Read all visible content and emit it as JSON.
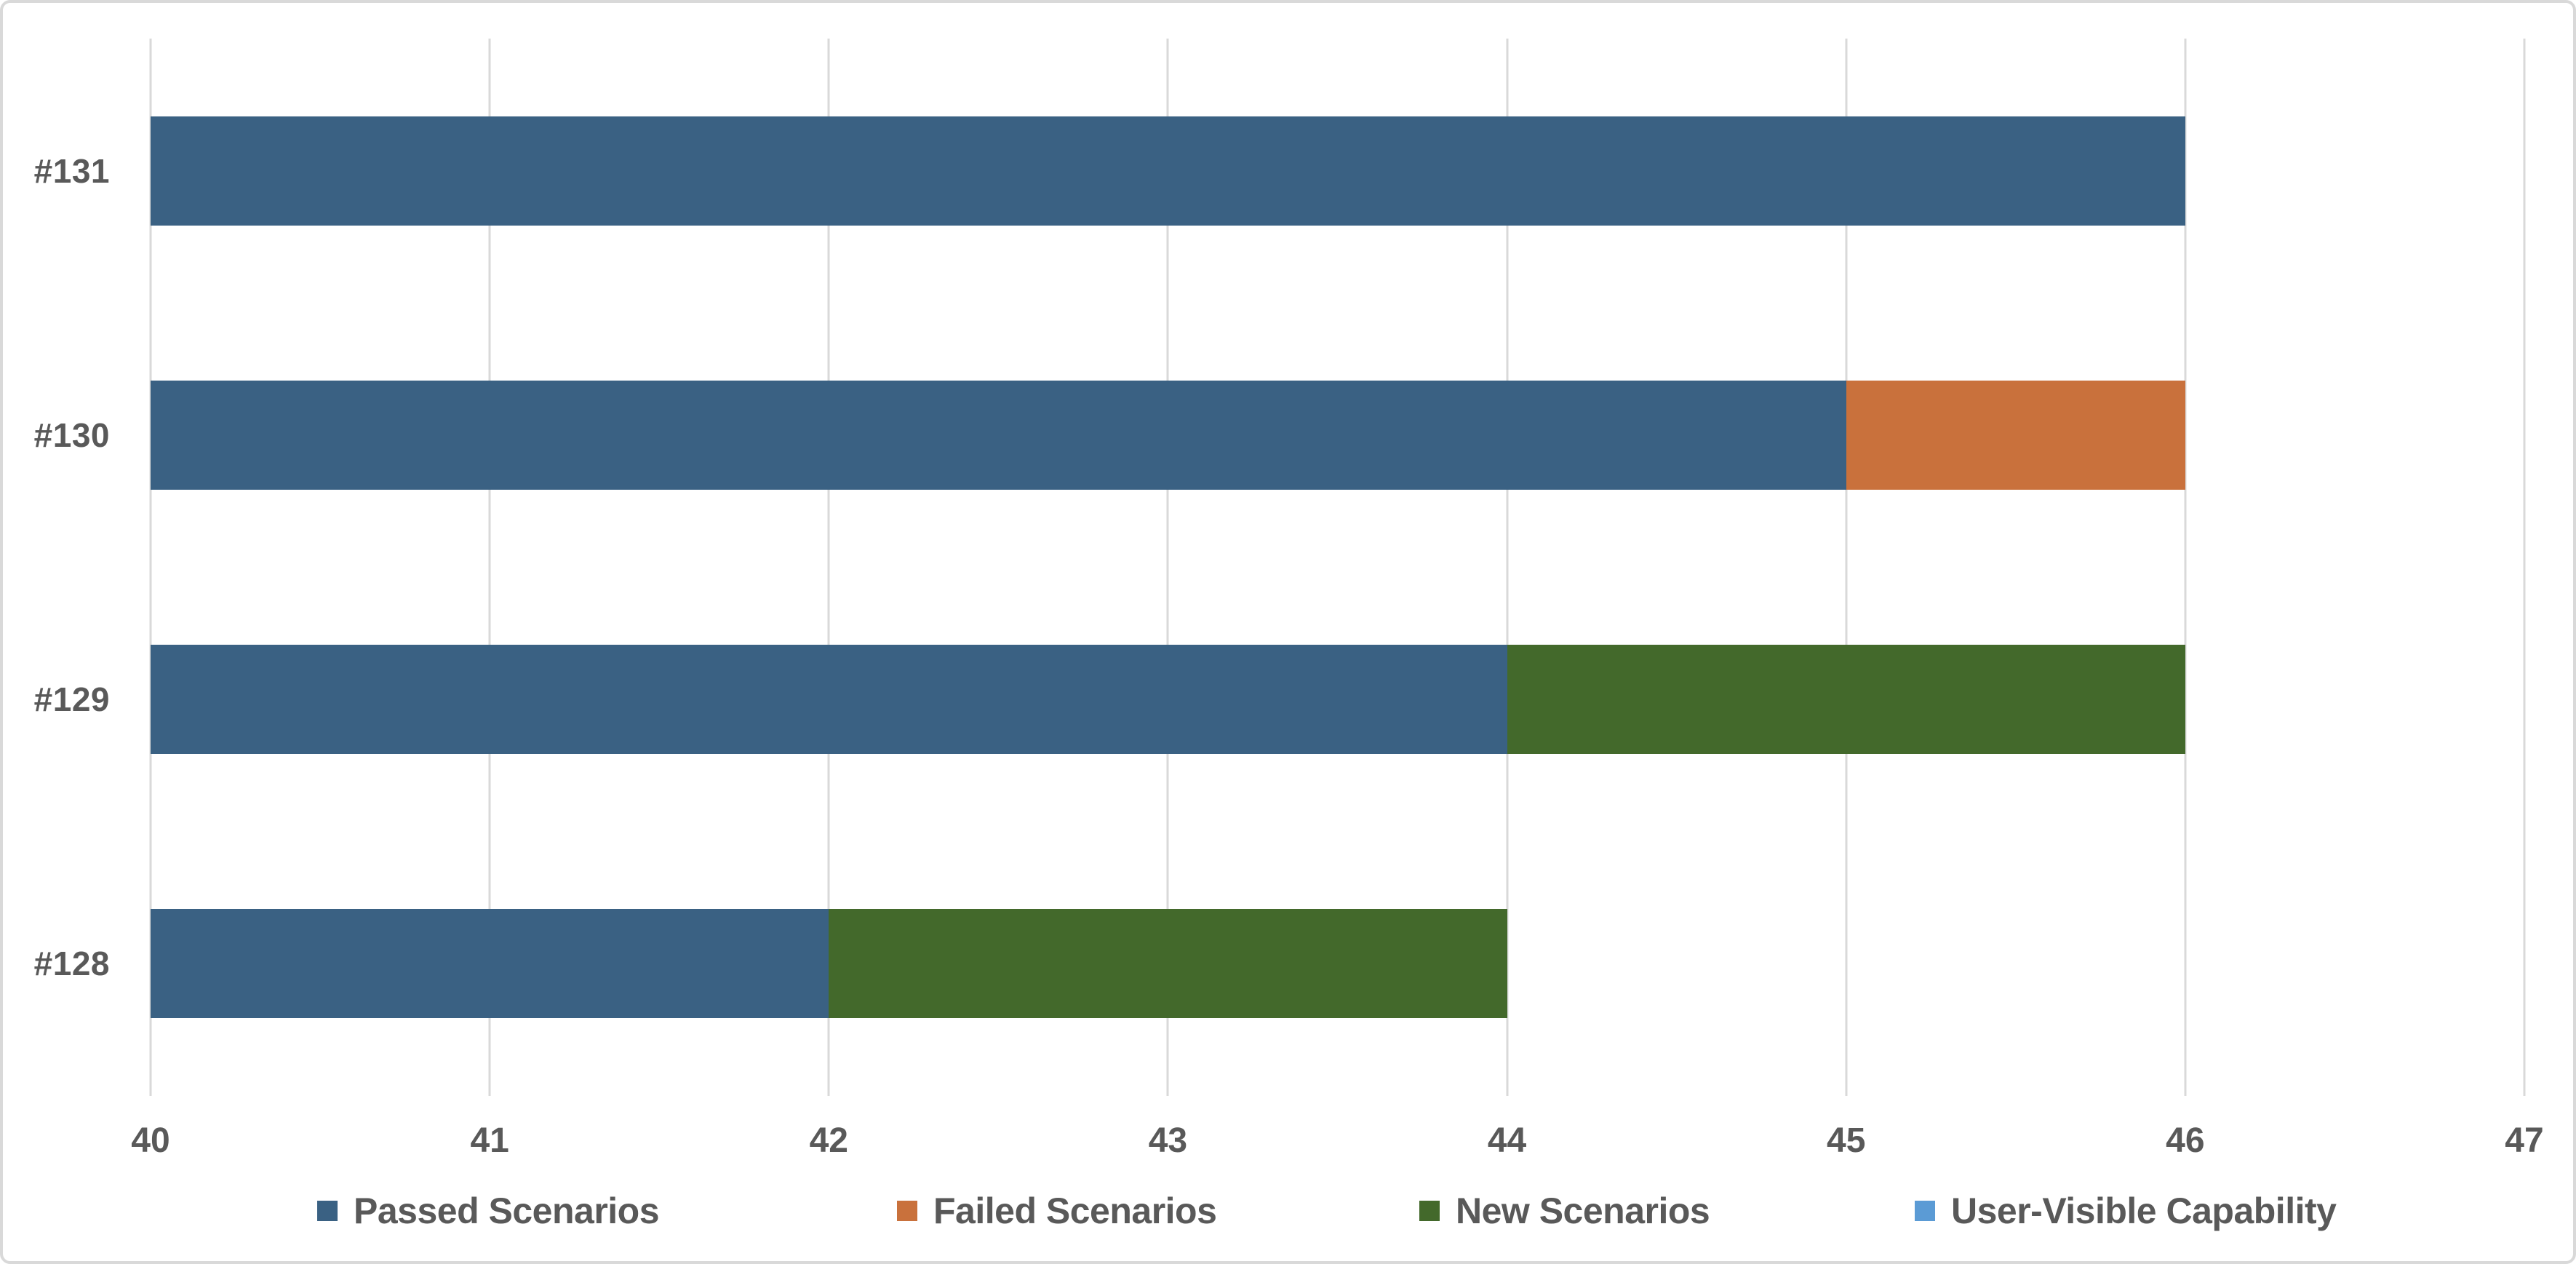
{
  "chart_data": {
    "type": "bar",
    "orientation": "horizontal",
    "stacked": true,
    "title": "",
    "xlabel": "",
    "ylabel": "",
    "categories": [
      "#131",
      "#130",
      "#129",
      "#128"
    ],
    "series": [
      {
        "name": "Passed Scenarios",
        "color": "#3A6183",
        "values": [
          46,
          45,
          44,
          42
        ]
      },
      {
        "name": "Failed Scenarios",
        "color": "#C9713C",
        "values": [
          0,
          1,
          0,
          0
        ]
      },
      {
        "name": "New Scenarios",
        "color": "#43692B",
        "values": [
          0,
          0,
          2,
          2
        ]
      },
      {
        "name": "User-Visible Capability",
        "color": "#5B9BD5",
        "values": [
          0,
          0,
          0,
          0
        ]
      }
    ],
    "bar_totals": [
      46,
      46,
      46,
      44
    ],
    "xlim": [
      40,
      47
    ],
    "x_ticks": [
      "40",
      "41",
      "42",
      "43",
      "44",
      "45",
      "46",
      "47"
    ],
    "grid": true,
    "legend_position": "bottom"
  },
  "colors": {
    "text": "#595959",
    "gridline": "#D9D9D9",
    "border": "#D9D9D9",
    "background": "#FFFFFF"
  }
}
